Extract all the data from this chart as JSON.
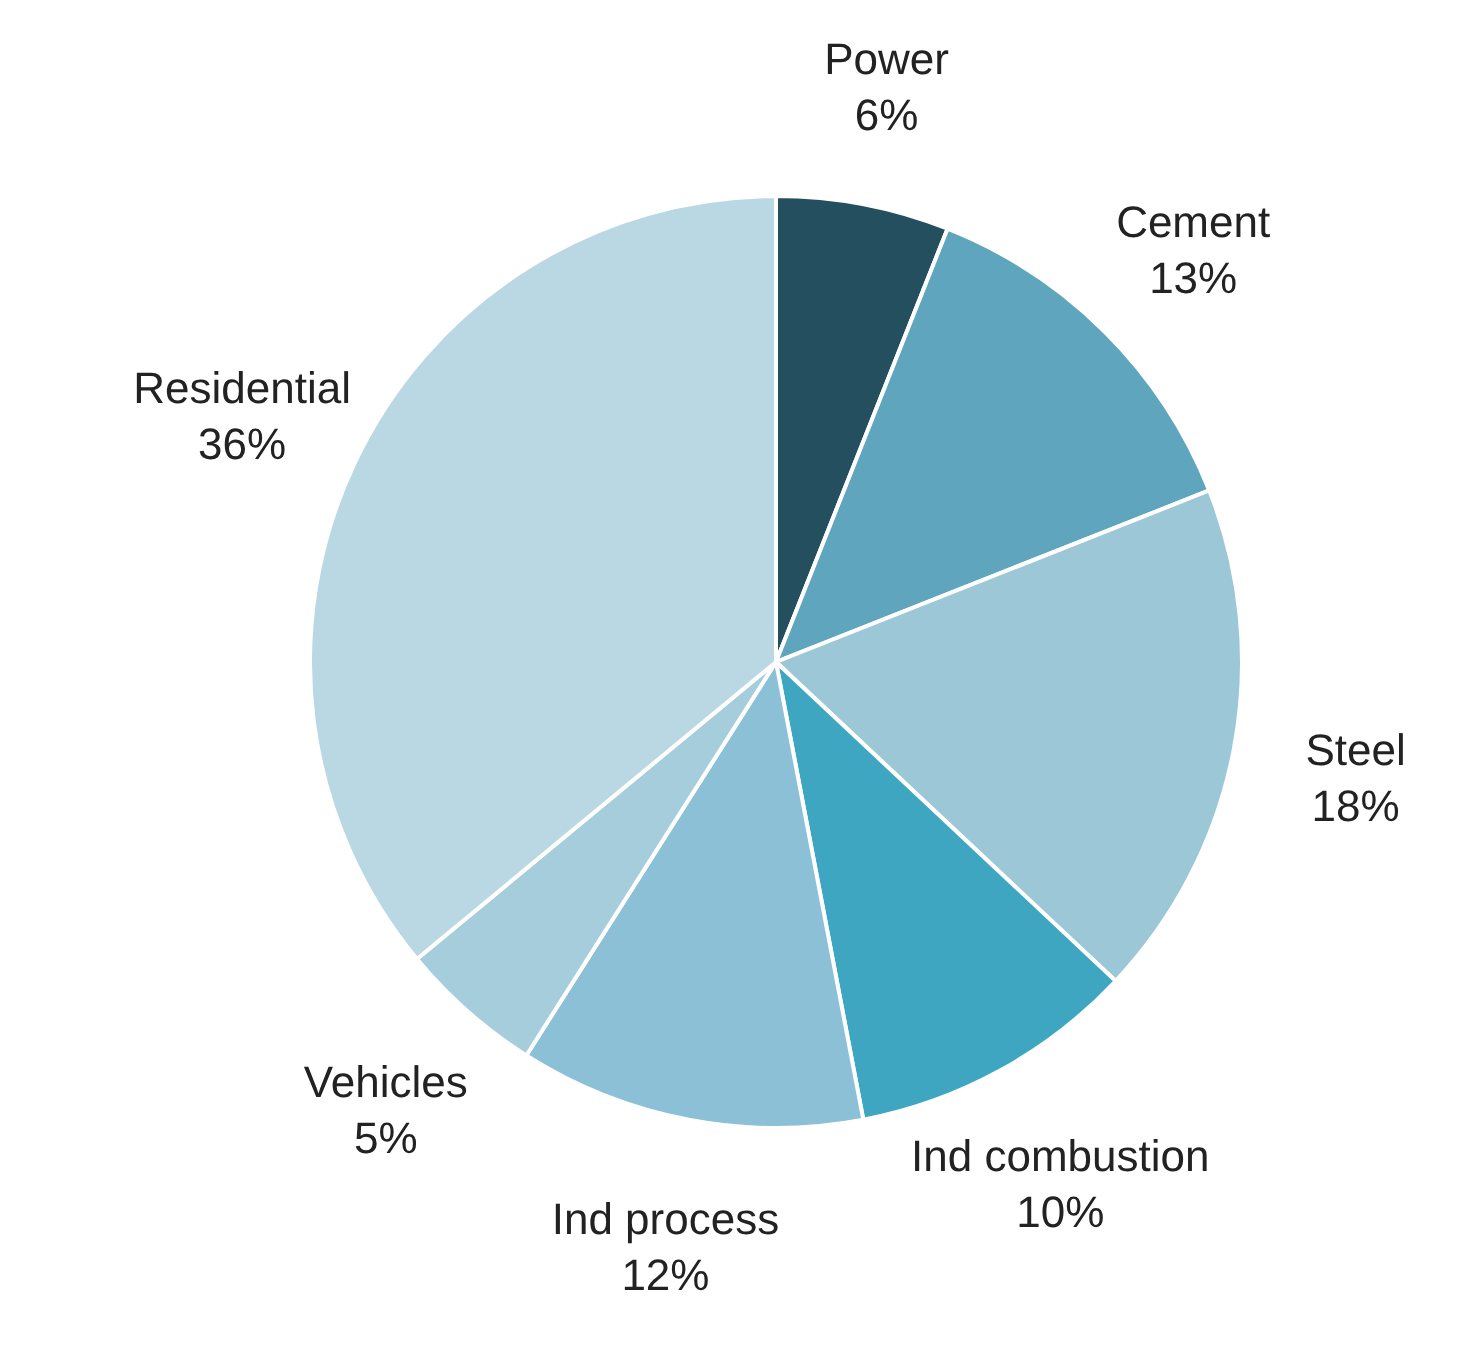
{
  "chart_data": {
    "type": "pie",
    "categories": [
      "Power",
      "Cement",
      "Steel",
      "Ind combustion",
      "Ind process",
      "Vehicles",
      "Residential"
    ],
    "values": [
      6,
      13,
      18,
      10,
      12,
      5,
      36
    ],
    "value_labels": [
      "6%",
      "13%",
      "18%",
      "10%",
      "12%",
      "5%",
      "36%"
    ],
    "colors": [
      "#234f5e",
      "#5ea5bd",
      "#9cc7d6",
      "#3fa6c2",
      "#8cc0d6",
      "#a5cddc",
      "#b9d8e4"
    ],
    "legend": false
  }
}
